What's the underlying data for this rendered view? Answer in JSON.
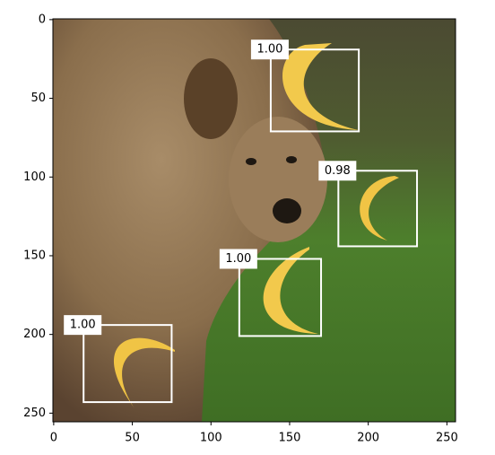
{
  "chart_data": {
    "type": "detection",
    "xlim": [
      -0.5,
      255.5
    ],
    "ylim": [
      255.5,
      -0.5
    ],
    "xticks": [
      0,
      50,
      100,
      150,
      200,
      250
    ],
    "yticks": [
      0,
      50,
      100,
      150,
      200,
      250
    ],
    "boxes": [
      [
        138,
        19,
        194,
        71
      ],
      [
        181,
        96,
        231,
        144
      ],
      [
        118,
        152,
        170,
        201
      ],
      [
        19,
        194,
        75,
        243
      ]
    ],
    "scores": [
      1.0,
      0.98,
      1.0,
      1.0
    ],
    "value_labels": [
      "1.00",
      "0.98",
      "1.00",
      "1.00"
    ],
    "color": "#ffffff"
  }
}
